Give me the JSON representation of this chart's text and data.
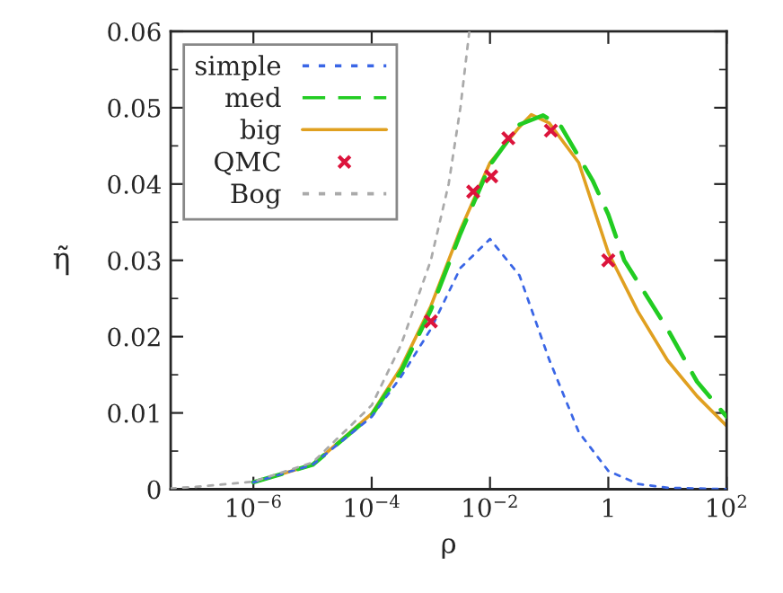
{
  "chart_data": {
    "type": "line",
    "xlabel": "ρ",
    "ylabel": "η̃",
    "log": "x",
    "xlim": [
      4e-08,
      100
    ],
    "xticks": [
      {
        "value": 1e-06,
        "label": "10$^{−6}$"
      },
      {
        "value": 0.0001,
        "label": "10$^{−4}$"
      },
      {
        "value": 0.01,
        "label": "10$^{−2}$"
      },
      {
        "value": 1,
        "label": "1"
      },
      {
        "value": 100,
        "label": "10$^{2}$"
      }
    ],
    "ylim": [
      0,
      0.06
    ],
    "yticks": [
      0,
      0.01,
      0.02,
      0.03,
      0.04,
      0.05,
      0.06
    ],
    "legend": "top left",
    "grid": false,
    "series": [
      {
        "name": "simple",
        "color": "#3a66e6",
        "line_style": "dotted",
        "x": [
          1e-06,
          1e-05,
          0.0001,
          0.000316,
          0.001,
          0.00316,
          0.01,
          0.0316,
          0.1,
          0.316,
          1,
          3.16,
          10,
          100
        ],
        "values": [
          0.0009,
          0.0032,
          0.0095,
          0.0148,
          0.021,
          0.029,
          0.0328,
          0.028,
          0.017,
          0.0075,
          0.0024,
          0.0007,
          0.0002,
          0
        ]
      },
      {
        "name": "med",
        "color": "#22cc22",
        "line_style": "dashed",
        "x": [
          1e-06,
          1e-05,
          0.0001,
          0.000316,
          0.001,
          0.00316,
          0.01,
          0.0316,
          0.079,
          0.16,
          0.54,
          1,
          1.86,
          10,
          31.6,
          100
        ],
        "values": [
          0.0009,
          0.0032,
          0.0097,
          0.0155,
          0.0235,
          0.0335,
          0.0425,
          0.0478,
          0.049,
          0.0475,
          0.0405,
          0.036,
          0.03,
          0.021,
          0.0141,
          0.0095
        ]
      },
      {
        "name": "big",
        "color": "#e0a020",
        "line_style": "solid",
        "x": [
          1e-06,
          1e-05,
          0.0001,
          0.000316,
          0.001,
          0.00316,
          0.01,
          0.0316,
          0.05,
          0.1,
          0.316,
          1,
          3.16,
          10,
          31.6,
          100
        ],
        "values": [
          0.0009,
          0.0032,
          0.0099,
          0.016,
          0.024,
          0.034,
          0.0428,
          0.0475,
          0.0491,
          0.048,
          0.0428,
          0.031,
          0.0233,
          0.0169,
          0.0122,
          0.0083
        ]
      },
      {
        "name": "QMC",
        "type": "scatter",
        "marker": "cross",
        "color": "#dc143c",
        "x": [
          0.001,
          0.0052,
          0.0105,
          0.0204,
          0.107,
          1
        ],
        "values": [
          0.022,
          0.039,
          0.041,
          0.046,
          0.047,
          0.03
        ]
      },
      {
        "name": "Bog",
        "color": "#aaaaaa",
        "line_style": "dotted",
        "x": [
          4e-08,
          1e-07,
          1e-06,
          1e-05,
          0.0001,
          0.000316,
          0.001,
          0.002,
          0.00316,
          0.00447
        ],
        "values": [
          0.0001,
          0.0003,
          0.001,
          0.0035,
          0.011,
          0.019,
          0.03,
          0.04,
          0.05,
          0.06
        ]
      }
    ]
  }
}
